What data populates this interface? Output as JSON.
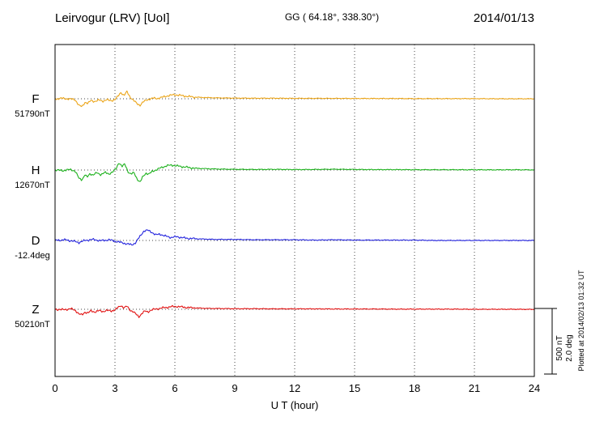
{
  "header": {
    "title": "Leirvogur (LRV)  [UoI]",
    "coords": "GG ( 64.18°, 338.30°)",
    "date": "2014/01/13"
  },
  "axis": {
    "xlabel": "U T (hour)",
    "ticks": [
      0,
      3,
      6,
      9,
      12,
      15,
      18,
      21,
      24
    ]
  },
  "scalebar": {
    "nt_label": "500 nT",
    "deg_label": "2.0 deg"
  },
  "footer": {
    "plotted_note": "Plotted at 2014/02/13 01:32 UT"
  },
  "traces": [
    {
      "label": "F",
      "value_label": "51790nT",
      "color": "#eba417"
    },
    {
      "label": "H",
      "value_label": "12670nT",
      "color": "#1cb11c"
    },
    {
      "label": "D",
      "value_label": "-12.4deg",
      "color": "#2222dd"
    },
    {
      "label": "Z",
      "value_label": "50210nT",
      "color": "#e21212"
    }
  ],
  "chart_data": {
    "type": "line",
    "title": "Leirvogur (LRV) magnetogram, 2014/01/13",
    "xlabel": "U T (hour)",
    "xlim": [
      0,
      24
    ],
    "x_unit": "hour",
    "legend_position": "left",
    "grid": "dotted-vertical-every-3h",
    "scale_bar": {
      "nT_per_div": 500,
      "deg_per_div": 2.0
    },
    "series": [
      {
        "name": "F",
        "unit": "nT",
        "baseline": 51790,
        "offsets": [
          [
            0,
            0
          ],
          [
            0.4,
            3
          ],
          [
            0.8,
            -3
          ],
          [
            1.0,
            -5
          ],
          [
            1.2,
            -50
          ],
          [
            1.35,
            -58
          ],
          [
            1.5,
            -25
          ],
          [
            1.65,
            -35
          ],
          [
            1.8,
            -12
          ],
          [
            2.0,
            -20
          ],
          [
            2.2,
            -10
          ],
          [
            2.4,
            -16
          ],
          [
            2.6,
            -8
          ],
          [
            2.8,
            -14
          ],
          [
            3.0,
            -6
          ],
          [
            3.15,
            18
          ],
          [
            3.3,
            48
          ],
          [
            3.45,
            22
          ],
          [
            3.6,
            52
          ],
          [
            3.75,
            15
          ],
          [
            3.9,
            -8
          ],
          [
            4.1,
            -35
          ],
          [
            4.25,
            -48
          ],
          [
            4.4,
            -25
          ],
          [
            4.55,
            -12
          ],
          [
            4.7,
            -2
          ],
          [
            4.9,
            4
          ],
          [
            5.1,
            2
          ],
          [
            5.4,
            12
          ],
          [
            5.7,
            24
          ],
          [
            6.0,
            30
          ],
          [
            6.3,
            24
          ],
          [
            6.6,
            18
          ],
          [
            7.0,
            12
          ],
          [
            7.5,
            9
          ],
          [
            8.0,
            7
          ],
          [
            9,
            5
          ],
          [
            10,
            4
          ],
          [
            11,
            4
          ],
          [
            12,
            3
          ],
          [
            13,
            3
          ],
          [
            14,
            3
          ],
          [
            15,
            2
          ],
          [
            16,
            2
          ],
          [
            17,
            2
          ],
          [
            18,
            1
          ],
          [
            19,
            1
          ],
          [
            20,
            1
          ],
          [
            21,
            1
          ],
          [
            22,
            0
          ],
          [
            23,
            0
          ],
          [
            24,
            0
          ]
        ]
      },
      {
        "name": "H",
        "unit": "nT",
        "baseline": 12670,
        "offsets": [
          [
            0,
            0
          ],
          [
            0.4,
            -4
          ],
          [
            0.8,
            4
          ],
          [
            1.0,
            -8
          ],
          [
            1.2,
            -60
          ],
          [
            1.35,
            -72
          ],
          [
            1.5,
            -35
          ],
          [
            1.6,
            -55
          ],
          [
            1.75,
            -25
          ],
          [
            1.9,
            -38
          ],
          [
            2.1,
            -20
          ],
          [
            2.3,
            -34
          ],
          [
            2.5,
            -18
          ],
          [
            2.7,
            -28
          ],
          [
            2.9,
            -14
          ],
          [
            3.05,
            8
          ],
          [
            3.2,
            58
          ],
          [
            3.35,
            24
          ],
          [
            3.5,
            46
          ],
          [
            3.65,
            -12
          ],
          [
            3.8,
            -32
          ],
          [
            3.95,
            -18
          ],
          [
            4.1,
            -62
          ],
          [
            4.25,
            -92
          ],
          [
            4.4,
            -48
          ],
          [
            4.55,
            -22
          ],
          [
            4.7,
            -32
          ],
          [
            4.85,
            -12
          ],
          [
            5.0,
            -2
          ],
          [
            5.2,
            10
          ],
          [
            5.4,
            22
          ],
          [
            5.6,
            32
          ],
          [
            5.85,
            36
          ],
          [
            6.1,
            30
          ],
          [
            6.4,
            24
          ],
          [
            6.8,
            16
          ],
          [
            7.2,
            12
          ],
          [
            7.7,
            9
          ],
          [
            8.2,
            7
          ],
          [
            9,
            5
          ],
          [
            10,
            4
          ],
          [
            11,
            5
          ],
          [
            12,
            3
          ],
          [
            13,
            4
          ],
          [
            14,
            6
          ],
          [
            15,
            4
          ],
          [
            16,
            3
          ],
          [
            17,
            3
          ],
          [
            18,
            2
          ],
          [
            19,
            2
          ],
          [
            20,
            2
          ],
          [
            21,
            2
          ],
          [
            22,
            1
          ],
          [
            23,
            2
          ],
          [
            24,
            1
          ]
        ]
      },
      {
        "name": "D",
        "unit": "deg",
        "baseline": -12.4,
        "offsets": [
          [
            0,
            0
          ],
          [
            0.5,
            0.02
          ],
          [
            0.9,
            -0.02
          ],
          [
            1.2,
            -0.06
          ],
          [
            1.5,
            0.0
          ],
          [
            1.9,
            0.03
          ],
          [
            2.3,
            -0.01
          ],
          [
            2.7,
            0.02
          ],
          [
            3.0,
            -0.02
          ],
          [
            3.3,
            -0.06
          ],
          [
            3.6,
            -0.1
          ],
          [
            3.85,
            -0.13
          ],
          [
            4.05,
            -0.06
          ],
          [
            4.25,
            0.12
          ],
          [
            4.45,
            0.28
          ],
          [
            4.65,
            0.3
          ],
          [
            4.85,
            0.24
          ],
          [
            5.05,
            0.16
          ],
          [
            5.25,
            0.19
          ],
          [
            5.5,
            0.13
          ],
          [
            5.8,
            0.09
          ],
          [
            6.1,
            0.11
          ],
          [
            6.5,
            0.07
          ],
          [
            7.0,
            0.05
          ],
          [
            7.5,
            0.04
          ],
          [
            8,
            0.03
          ],
          [
            9,
            0.03
          ],
          [
            10,
            0.02
          ],
          [
            11,
            0.02
          ],
          [
            12,
            0.02
          ],
          [
            13,
            0.01
          ],
          [
            14,
            0.02
          ],
          [
            15,
            0.01
          ],
          [
            16,
            0.01
          ],
          [
            17,
            0.01
          ],
          [
            18,
            0.01
          ],
          [
            19,
            0.0
          ],
          [
            20,
            0.0
          ],
          [
            21,
            0.0
          ],
          [
            22,
            0.0
          ],
          [
            23,
            0.0
          ],
          [
            24,
            0.0
          ]
        ]
      },
      {
        "name": "Z",
        "unit": "nT",
        "baseline": 50210,
        "offsets": [
          [
            0,
            0
          ],
          [
            0.4,
            -3
          ],
          [
            0.8,
            3
          ],
          [
            1.0,
            -6
          ],
          [
            1.2,
            -35
          ],
          [
            1.35,
            -42
          ],
          [
            1.5,
            -20
          ],
          [
            1.65,
            -28
          ],
          [
            1.8,
            -12
          ],
          [
            2.0,
            -20
          ],
          [
            2.2,
            -10
          ],
          [
            2.4,
            -16
          ],
          [
            2.6,
            -8
          ],
          [
            2.8,
            -13
          ],
          [
            3.0,
            -4
          ],
          [
            3.15,
            12
          ],
          [
            3.3,
            28
          ],
          [
            3.45,
            10
          ],
          [
            3.6,
            22
          ],
          [
            3.75,
            -6
          ],
          [
            3.9,
            -16
          ],
          [
            4.05,
            -36
          ],
          [
            4.2,
            -55
          ],
          [
            4.35,
            -30
          ],
          [
            4.5,
            -14
          ],
          [
            4.65,
            -20
          ],
          [
            4.8,
            -6
          ],
          [
            5.0,
            0
          ],
          [
            5.2,
            6
          ],
          [
            5.5,
            12
          ],
          [
            5.8,
            19
          ],
          [
            6.1,
            21
          ],
          [
            6.4,
            16
          ],
          [
            6.8,
            11
          ],
          [
            7.3,
            8
          ],
          [
            7.8,
            6
          ],
          [
            8.5,
            5
          ],
          [
            9,
            4
          ],
          [
            10,
            4
          ],
          [
            11,
            3
          ],
          [
            12,
            3
          ],
          [
            13,
            3
          ],
          [
            14,
            2
          ],
          [
            15,
            2
          ],
          [
            16,
            2
          ],
          [
            17,
            1
          ],
          [
            18,
            1
          ],
          [
            19,
            1
          ],
          [
            20,
            1
          ],
          [
            21,
            0
          ],
          [
            22,
            0
          ],
          [
            23,
            0
          ],
          [
            24,
            -1
          ]
        ]
      }
    ]
  }
}
